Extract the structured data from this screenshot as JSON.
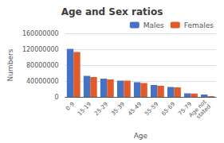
{
  "chart_data": {
    "type": "bar",
    "title": "Age and Sex ratios",
    "xlabel": "Age",
    "ylabel": "Numbers",
    "categories": [
      "0-9",
      "15-19",
      "25-29",
      "35-39",
      "45-49",
      "55-59",
      "65-69",
      "75-79",
      "Age not\nstated"
    ],
    "series": [
      {
        "name": "Males",
        "color": "#4472c4",
        "values": [
          121000000,
          53000000,
          46000000,
          41000000,
          37000000,
          30000000,
          25000000,
          9000000,
          6000000
        ]
      },
      {
        "name": "Females",
        "color": "#e05a2b",
        "values": [
          113000000,
          50000000,
          44000000,
          41000000,
          35000000,
          28000000,
          24000000,
          8500000,
          2000000
        ]
      }
    ],
    "ylim": [
      0,
      160000000
    ],
    "yticks": [
      0,
      40000000,
      80000000,
      120000000,
      160000000
    ],
    "grid": true,
    "legend": "upper right"
  }
}
